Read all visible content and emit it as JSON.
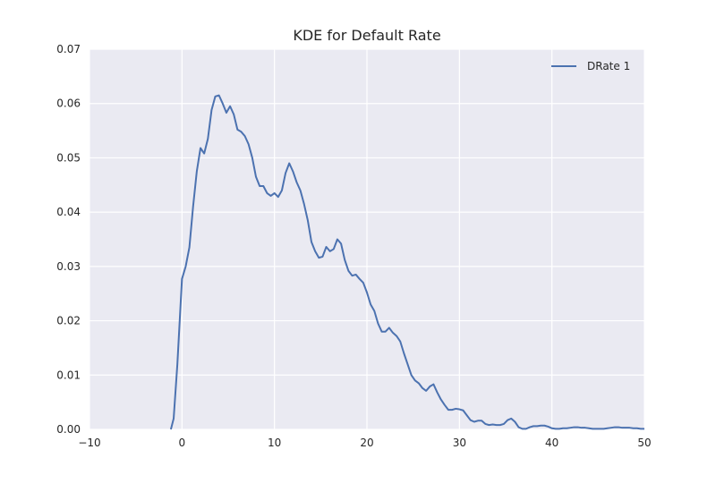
{
  "chart_data": {
    "type": "line",
    "title": "KDE for Default Rate",
    "xlabel": "",
    "ylabel": "",
    "xlim": [
      -10,
      50
    ],
    "ylim": [
      0,
      0.07
    ],
    "x_ticks": [
      -10,
      0,
      10,
      20,
      30,
      40,
      50
    ],
    "x_tick_labels": [
      "−10",
      "0",
      "10",
      "20",
      "30",
      "40",
      "50"
    ],
    "y_ticks": [
      0,
      0.01,
      0.02,
      0.03,
      0.04,
      0.05,
      0.06,
      0.07
    ],
    "y_tick_labels": [
      "0.00",
      "0.01",
      "0.02",
      "0.03",
      "0.04",
      "0.05",
      "0.06",
      "0.07"
    ],
    "grid": true,
    "legend_position": "top-right",
    "colors": {
      "plot_background": "#eaeaf2",
      "grid": "#ffffff",
      "series": "#4c72b0"
    },
    "series": [
      {
        "name": "DRate 1",
        "points": [
          [
            -1.2,
            0.0
          ],
          [
            -0.9,
            0.002
          ],
          [
            -0.5,
            0.012
          ],
          [
            0.0,
            0.0277
          ],
          [
            0.4,
            0.03
          ],
          [
            0.8,
            0.0335
          ],
          [
            1.2,
            0.041
          ],
          [
            1.6,
            0.0475
          ],
          [
            2.0,
            0.0518
          ],
          [
            2.4,
            0.0508
          ],
          [
            2.8,
            0.0535
          ],
          [
            3.2,
            0.0588
          ],
          [
            3.6,
            0.0613
          ],
          [
            4.0,
            0.0615
          ],
          [
            4.4,
            0.06
          ],
          [
            4.8,
            0.0583
          ],
          [
            5.2,
            0.0595
          ],
          [
            5.6,
            0.058
          ],
          [
            6.0,
            0.0552
          ],
          [
            6.4,
            0.0548
          ],
          [
            6.8,
            0.054
          ],
          [
            7.2,
            0.0525
          ],
          [
            7.6,
            0.05
          ],
          [
            8.0,
            0.0465
          ],
          [
            8.4,
            0.0448
          ],
          [
            8.8,
            0.0448
          ],
          [
            9.2,
            0.0435
          ],
          [
            9.6,
            0.043
          ],
          [
            10.0,
            0.0435
          ],
          [
            10.4,
            0.0428
          ],
          [
            10.8,
            0.044
          ],
          [
            11.2,
            0.0472
          ],
          [
            11.6,
            0.049
          ],
          [
            12.0,
            0.0475
          ],
          [
            12.4,
            0.0455
          ],
          [
            12.8,
            0.044
          ],
          [
            13.2,
            0.0415
          ],
          [
            13.6,
            0.0385
          ],
          [
            14.0,
            0.0345
          ],
          [
            14.4,
            0.0328
          ],
          [
            14.8,
            0.0316
          ],
          [
            15.2,
            0.0318
          ],
          [
            15.6,
            0.0336
          ],
          [
            16.0,
            0.0328
          ],
          [
            16.4,
            0.0332
          ],
          [
            16.8,
            0.035
          ],
          [
            17.2,
            0.0342
          ],
          [
            17.6,
            0.0312
          ],
          [
            18.0,
            0.0292
          ],
          [
            18.4,
            0.0283
          ],
          [
            18.8,
            0.0285
          ],
          [
            19.2,
            0.0277
          ],
          [
            19.6,
            0.027
          ],
          [
            20.0,
            0.0252
          ],
          [
            20.4,
            0.023
          ],
          [
            20.8,
            0.0218
          ],
          [
            21.2,
            0.0195
          ],
          [
            21.6,
            0.018
          ],
          [
            22.0,
            0.018
          ],
          [
            22.4,
            0.0187
          ],
          [
            22.8,
            0.0178
          ],
          [
            23.2,
            0.0172
          ],
          [
            23.6,
            0.0162
          ],
          [
            24.0,
            0.014
          ],
          [
            24.4,
            0.012
          ],
          [
            24.8,
            0.01
          ],
          [
            25.2,
            0.009
          ],
          [
            25.6,
            0.0085
          ],
          [
            26.0,
            0.0076
          ],
          [
            26.4,
            0.0071
          ],
          [
            26.8,
            0.0079
          ],
          [
            27.2,
            0.0083
          ],
          [
            27.6,
            0.0068
          ],
          [
            28.0,
            0.0055
          ],
          [
            28.4,
            0.0045
          ],
          [
            28.8,
            0.0036
          ],
          [
            29.2,
            0.0036
          ],
          [
            29.6,
            0.0038
          ],
          [
            30.0,
            0.0037
          ],
          [
            30.4,
            0.0035
          ],
          [
            30.8,
            0.0026
          ],
          [
            31.2,
            0.0017
          ],
          [
            31.6,
            0.0014
          ],
          [
            32.0,
            0.0016
          ],
          [
            32.4,
            0.0016
          ],
          [
            32.8,
            0.001
          ],
          [
            33.2,
            0.0008
          ],
          [
            33.6,
            0.0009
          ],
          [
            34.0,
            0.0008
          ],
          [
            34.4,
            0.0008
          ],
          [
            34.8,
            0.001
          ],
          [
            35.2,
            0.0017
          ],
          [
            35.6,
            0.002
          ],
          [
            36.0,
            0.0014
          ],
          [
            36.4,
            0.0004
          ],
          [
            36.8,
            0.0001
          ],
          [
            37.2,
            0.0001
          ],
          [
            37.6,
            0.0004
          ],
          [
            38.0,
            0.0006
          ],
          [
            38.4,
            0.0006
          ],
          [
            38.8,
            0.0007
          ],
          [
            39.2,
            0.0007
          ],
          [
            39.6,
            0.0005
          ],
          [
            40.0,
            0.0002
          ],
          [
            40.4,
            0.0001
          ],
          [
            40.8,
            0.0001
          ],
          [
            41.2,
            0.0002
          ],
          [
            41.6,
            0.0002
          ],
          [
            42.0,
            0.0003
          ],
          [
            42.4,
            0.0004
          ],
          [
            42.8,
            0.0004
          ],
          [
            43.2,
            0.0003
          ],
          [
            43.6,
            0.0003
          ],
          [
            44.0,
            0.0002
          ],
          [
            44.4,
            0.0001
          ],
          [
            44.8,
            0.0001
          ],
          [
            45.2,
            0.0001
          ],
          [
            45.6,
            0.0001
          ],
          [
            46.0,
            0.0002
          ],
          [
            46.4,
            0.0003
          ],
          [
            46.8,
            0.0004
          ],
          [
            47.2,
            0.0004
          ],
          [
            47.6,
            0.0003
          ],
          [
            48.0,
            0.0003
          ],
          [
            48.4,
            0.0003
          ],
          [
            48.8,
            0.0002
          ],
          [
            49.2,
            0.0002
          ],
          [
            49.6,
            0.0001
          ],
          [
            50.0,
            0.0001
          ]
        ]
      }
    ]
  }
}
